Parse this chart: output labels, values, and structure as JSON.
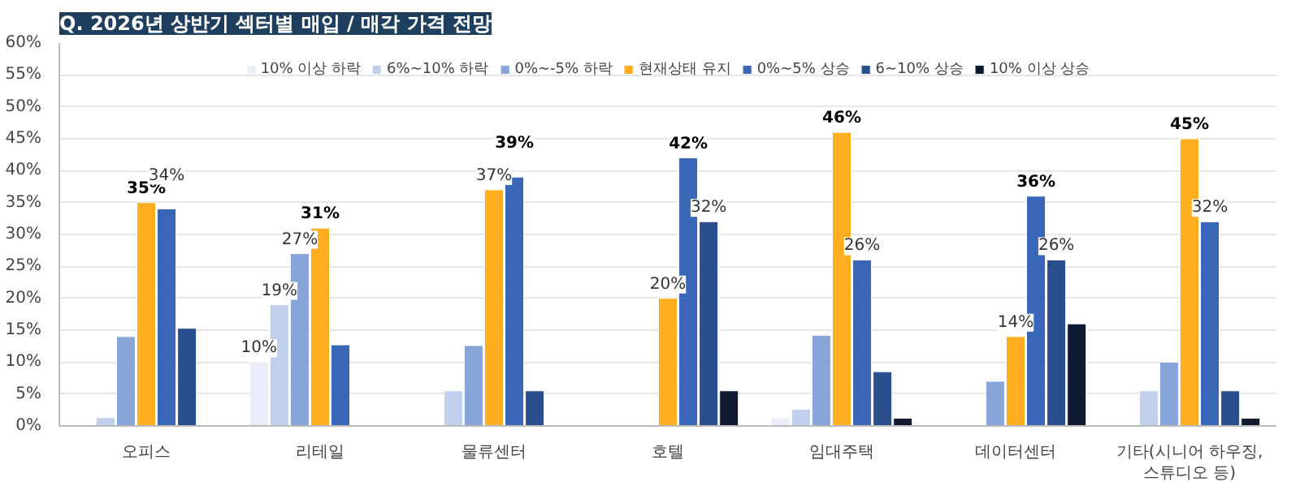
{
  "chart_data": {
    "type": "bar",
    "title": "Q. 2026년 상반기 섹터별 매입 / 매각 가격 전망",
    "categories": [
      "오피스",
      "리테일",
      "물류센터",
      "호텔",
      "임대주택",
      "데이터센터",
      "기타(시니어 하우징,\n스튜디오 등)"
    ],
    "series": [
      {
        "name": "10% 이상 하락",
        "color": "#e8edf7",
        "values": [
          null,
          10,
          null,
          null,
          1.2,
          null,
          null
        ],
        "value_labels": [
          null,
          "10%",
          null,
          null,
          null,
          null,
          null
        ]
      },
      {
        "name": "6%~10% 하락",
        "color": "#c0d0ec",
        "values": [
          1.3,
          19,
          5.5,
          null,
          2.6,
          null,
          5.5
        ],
        "value_labels": [
          null,
          "19%",
          null,
          null,
          null,
          null,
          null
        ]
      },
      {
        "name": "0%~-5% 하락",
        "color": "#87a5d9",
        "values": [
          14,
          27,
          12.6,
          null,
          14.2,
          7,
          10
        ],
        "value_labels": [
          null,
          "27%",
          null,
          null,
          null,
          null,
          null
        ]
      },
      {
        "name": "현재상태 유지",
        "color": "#ffae20",
        "values": [
          35,
          31,
          37,
          20,
          46,
          14,
          45
        ],
        "value_labels": [
          "35%",
          "31%",
          "37%",
          "20%",
          "46%",
          "14%",
          "45%"
        ]
      },
      {
        "name": "0%~5% 상승",
        "color": "#3a66b7",
        "values": [
          34,
          12.7,
          39,
          42,
          26,
          36,
          32
        ],
        "value_labels": [
          "34%",
          null,
          "39%",
          "42%",
          "26%",
          "36%",
          "32%"
        ]
      },
      {
        "name": "6~10% 상승",
        "color": "#2b4e8c",
        "values": [
          15.3,
          null,
          5.5,
          32,
          8.5,
          26,
          5.5
        ],
        "value_labels": [
          null,
          null,
          null,
          "32%",
          null,
          "26%",
          null
        ]
      },
      {
        "name": "10% 이상 상승",
        "color": "#0f1a30",
        "values": [
          null,
          null,
          null,
          5.5,
          1.2,
          16,
          1.2
        ],
        "value_labels": [
          null,
          null,
          null,
          null,
          null,
          null,
          null
        ]
      }
    ],
    "ylim": [
      0,
      60
    ],
    "yticks": [
      {
        "value": 0,
        "label": "0%"
      },
      {
        "value": 5,
        "label": "5%"
      },
      {
        "value": 10,
        "label": "10%"
      },
      {
        "value": 15,
        "label": "15%"
      },
      {
        "value": 20,
        "label": "20%"
      },
      {
        "value": 25,
        "label": "25%"
      },
      {
        "value": 30,
        "label": "30%"
      },
      {
        "value": 35,
        "label": "35%"
      },
      {
        "value": 40,
        "label": "40%"
      },
      {
        "value": 45,
        "label": "45%"
      },
      {
        "value": 50,
        "label": "50%"
      },
      {
        "value": 55,
        "label": "55%"
      },
      {
        "value": 60,
        "label": "60%"
      }
    ],
    "grid": "y",
    "legend": "top"
  }
}
